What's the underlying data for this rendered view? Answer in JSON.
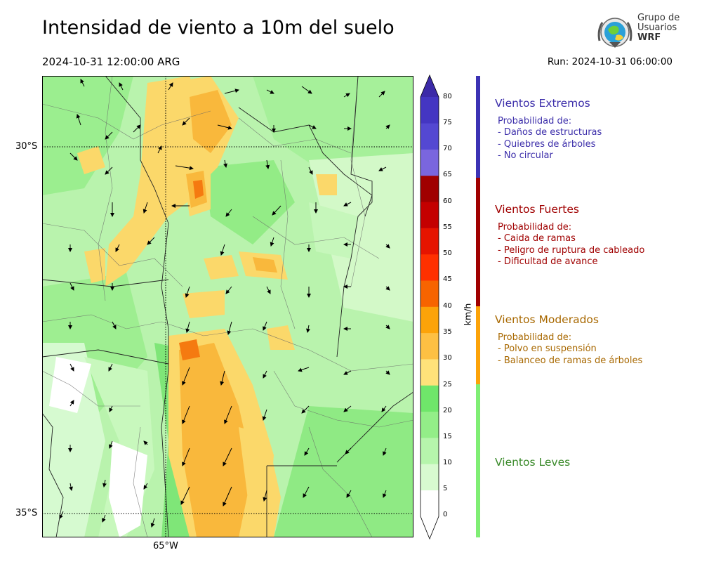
{
  "header": {
    "title": "Intensidad de viento a 10m del suelo",
    "valid_time": "2024-10-31 12:00:00 ARG",
    "run_time": "Run: 2024-10-31 06:00:00"
  },
  "logo": {
    "line1": "Grupo de",
    "line2": "Usuarios",
    "line3": "WRF"
  },
  "map": {
    "lat_labels": [
      "30°S",
      "35°S"
    ],
    "lon_labels": [
      "65°W"
    ]
  },
  "colorbar": {
    "unit": "km/h",
    "ticks": [
      "0",
      "5",
      "10",
      "15",
      "20",
      "25",
      "30",
      "35",
      "40",
      "45",
      "50",
      "55",
      "60",
      "65",
      "70",
      "75",
      "80"
    ],
    "colors": [
      "#ffffff",
      "#d8fad0",
      "#b6f5ac",
      "#93ee88",
      "#6fe66a",
      "#ffe27a",
      "#fdc043",
      "#fca309",
      "#f76400",
      "#ff3000",
      "#e61400",
      "#c40000",
      "#a00000",
      "#7a66de",
      "#5448d2",
      "#4436c2"
    ]
  },
  "categories": [
    {
      "title": "Vientos Extremos",
      "color": "#3c2eaa",
      "bar_color": "#3c32b4",
      "lines": [
        "Probabilidad de:",
        "- Daños de estructuras",
        "- Quiebres de árboles",
        "- No circular"
      ]
    },
    {
      "title": "Vientos Fuertes",
      "color": "#a00000",
      "bar_color": "#a00000",
      "lines": [
        "Probabilidad de:",
        "- Caida de ramas",
        "- Peligro de ruptura de cableado",
        "- Dificultad de avance"
      ]
    },
    {
      "title": "Vientos Moderados",
      "color": "#a86800",
      "bar_color": "#fca309",
      "lines": [
        "Probabilidad de:",
        "- Polvo en suspensión",
        "- Balanceo de ramas de árboles"
      ]
    },
    {
      "title": "Vientos Leves",
      "color": "#3a8a2a",
      "bar_color": "#7fee74",
      "lines": []
    }
  ]
}
